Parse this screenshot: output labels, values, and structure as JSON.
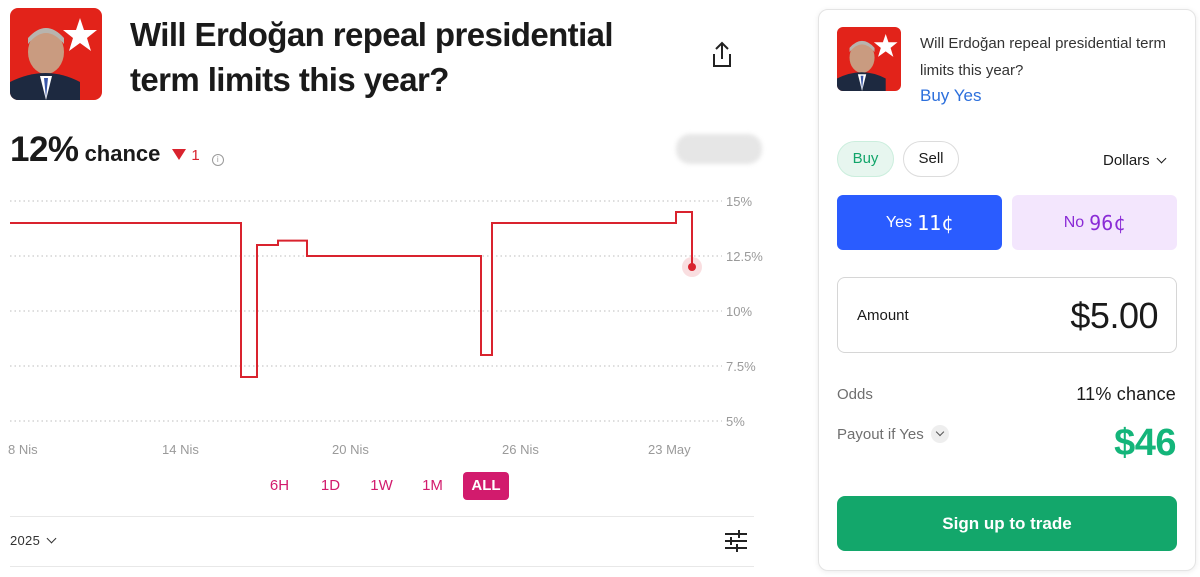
{
  "market": {
    "title": "Will Erdoğan repeal presidential term limits this year?",
    "image_icon": "portrait-with-flag-icon"
  },
  "chance": {
    "percent": "12%",
    "word": "chance",
    "delta": "1",
    "delta_direction": "down",
    "delta_color": "#d9232e"
  },
  "chart_data": {
    "type": "line",
    "title": "",
    "xlabel": "",
    "ylabel": "",
    "x_tick_labels": [
      "8 Nis",
      "14 Nis",
      "20 Nis",
      "26 Nis",
      "23 May"
    ],
    "y_tick_labels": [
      "15%",
      "12.5%",
      "10%",
      "7.5%",
      "5%"
    ],
    "ylim": [
      5,
      15
    ],
    "grid": "dotted-horizontal",
    "line_color": "#d9232e",
    "series": [
      {
        "values_percent": [
          14,
          14,
          14,
          7,
          7,
          13,
          13,
          13,
          13.2,
          13.2,
          12.5,
          12.5,
          12.5,
          8,
          8,
          14,
          14,
          14,
          14.5,
          14.5,
          12
        ]
      }
    ]
  },
  "ranges": {
    "tabs": [
      "6H",
      "1D",
      "1W",
      "1M",
      "ALL"
    ],
    "active": "ALL",
    "accent": "#d21b6d"
  },
  "footer": {
    "year": "2025",
    "settings_icon": "sliders-icon",
    "share_icon": "share-icon"
  },
  "trade": {
    "question": "Will Erdoğan repeal presidential term limits this year?",
    "action_title": "Buy Yes",
    "buy_label": "Buy",
    "sell_label": "Sell",
    "currency": "Dollars",
    "yes_label": "Yes",
    "yes_price": "11¢",
    "no_label": "No",
    "no_price": "96¢",
    "amount_label": "Amount",
    "amount_value": "$5.00",
    "odds_label": "Odds",
    "odds_value": "11% chance",
    "payout_label": "Payout if Yes",
    "payout_value": "$46",
    "signup_label": "Sign up to trade",
    "colors": {
      "yes": "#2a5cff",
      "no": "#f3e6fd",
      "green": "#13a76b",
      "link": "#2c6fdc"
    }
  }
}
